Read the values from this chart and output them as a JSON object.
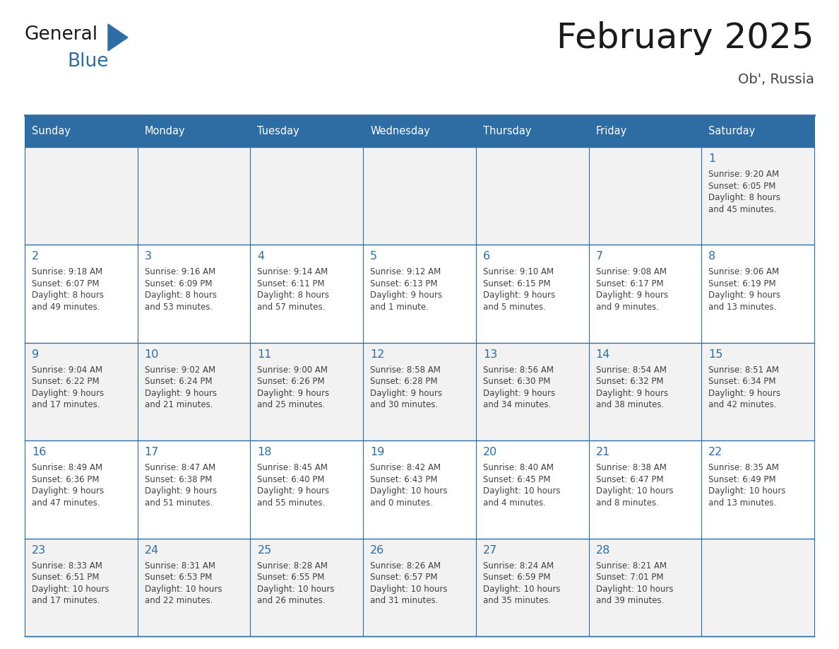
{
  "title": "February 2025",
  "subtitle": "Ob', Russia",
  "days_of_week": [
    "Sunday",
    "Monday",
    "Tuesday",
    "Wednesday",
    "Thursday",
    "Friday",
    "Saturday"
  ],
  "header_bg": "#2E6DA4",
  "header_text": "#FFFFFF",
  "cell_bg_odd": "#F2F2F2",
  "cell_bg_even": "#FFFFFF",
  "border_color": "#2E6DA4",
  "day_number_color": "#2E6DA4",
  "cell_text_color": "#404040",
  "title_color": "#1a1a1a",
  "subtitle_color": "#444444",
  "logo_general_color": "#1a1a1a",
  "logo_blue_color": "#2E6DA4",
  "weeks": [
    [
      {
        "day": null,
        "info": null
      },
      {
        "day": null,
        "info": null
      },
      {
        "day": null,
        "info": null
      },
      {
        "day": null,
        "info": null
      },
      {
        "day": null,
        "info": null
      },
      {
        "day": null,
        "info": null
      },
      {
        "day": 1,
        "info": "Sunrise: 9:20 AM\nSunset: 6:05 PM\nDaylight: 8 hours\nand 45 minutes."
      }
    ],
    [
      {
        "day": 2,
        "info": "Sunrise: 9:18 AM\nSunset: 6:07 PM\nDaylight: 8 hours\nand 49 minutes."
      },
      {
        "day": 3,
        "info": "Sunrise: 9:16 AM\nSunset: 6:09 PM\nDaylight: 8 hours\nand 53 minutes."
      },
      {
        "day": 4,
        "info": "Sunrise: 9:14 AM\nSunset: 6:11 PM\nDaylight: 8 hours\nand 57 minutes."
      },
      {
        "day": 5,
        "info": "Sunrise: 9:12 AM\nSunset: 6:13 PM\nDaylight: 9 hours\nand 1 minute."
      },
      {
        "day": 6,
        "info": "Sunrise: 9:10 AM\nSunset: 6:15 PM\nDaylight: 9 hours\nand 5 minutes."
      },
      {
        "day": 7,
        "info": "Sunrise: 9:08 AM\nSunset: 6:17 PM\nDaylight: 9 hours\nand 9 minutes."
      },
      {
        "day": 8,
        "info": "Sunrise: 9:06 AM\nSunset: 6:19 PM\nDaylight: 9 hours\nand 13 minutes."
      }
    ],
    [
      {
        "day": 9,
        "info": "Sunrise: 9:04 AM\nSunset: 6:22 PM\nDaylight: 9 hours\nand 17 minutes."
      },
      {
        "day": 10,
        "info": "Sunrise: 9:02 AM\nSunset: 6:24 PM\nDaylight: 9 hours\nand 21 minutes."
      },
      {
        "day": 11,
        "info": "Sunrise: 9:00 AM\nSunset: 6:26 PM\nDaylight: 9 hours\nand 25 minutes."
      },
      {
        "day": 12,
        "info": "Sunrise: 8:58 AM\nSunset: 6:28 PM\nDaylight: 9 hours\nand 30 minutes."
      },
      {
        "day": 13,
        "info": "Sunrise: 8:56 AM\nSunset: 6:30 PM\nDaylight: 9 hours\nand 34 minutes."
      },
      {
        "day": 14,
        "info": "Sunrise: 8:54 AM\nSunset: 6:32 PM\nDaylight: 9 hours\nand 38 minutes."
      },
      {
        "day": 15,
        "info": "Sunrise: 8:51 AM\nSunset: 6:34 PM\nDaylight: 9 hours\nand 42 minutes."
      }
    ],
    [
      {
        "day": 16,
        "info": "Sunrise: 8:49 AM\nSunset: 6:36 PM\nDaylight: 9 hours\nand 47 minutes."
      },
      {
        "day": 17,
        "info": "Sunrise: 8:47 AM\nSunset: 6:38 PM\nDaylight: 9 hours\nand 51 minutes."
      },
      {
        "day": 18,
        "info": "Sunrise: 8:45 AM\nSunset: 6:40 PM\nDaylight: 9 hours\nand 55 minutes."
      },
      {
        "day": 19,
        "info": "Sunrise: 8:42 AM\nSunset: 6:43 PM\nDaylight: 10 hours\nand 0 minutes."
      },
      {
        "day": 20,
        "info": "Sunrise: 8:40 AM\nSunset: 6:45 PM\nDaylight: 10 hours\nand 4 minutes."
      },
      {
        "day": 21,
        "info": "Sunrise: 8:38 AM\nSunset: 6:47 PM\nDaylight: 10 hours\nand 8 minutes."
      },
      {
        "day": 22,
        "info": "Sunrise: 8:35 AM\nSunset: 6:49 PM\nDaylight: 10 hours\nand 13 minutes."
      }
    ],
    [
      {
        "day": 23,
        "info": "Sunrise: 8:33 AM\nSunset: 6:51 PM\nDaylight: 10 hours\nand 17 minutes."
      },
      {
        "day": 24,
        "info": "Sunrise: 8:31 AM\nSunset: 6:53 PM\nDaylight: 10 hours\nand 22 minutes."
      },
      {
        "day": 25,
        "info": "Sunrise: 8:28 AM\nSunset: 6:55 PM\nDaylight: 10 hours\nand 26 minutes."
      },
      {
        "day": 26,
        "info": "Sunrise: 8:26 AM\nSunset: 6:57 PM\nDaylight: 10 hours\nand 31 minutes."
      },
      {
        "day": 27,
        "info": "Sunrise: 8:24 AM\nSunset: 6:59 PM\nDaylight: 10 hours\nand 35 minutes."
      },
      {
        "day": 28,
        "info": "Sunrise: 8:21 AM\nSunset: 7:01 PM\nDaylight: 10 hours\nand 39 minutes."
      },
      {
        "day": null,
        "info": null
      }
    ]
  ]
}
